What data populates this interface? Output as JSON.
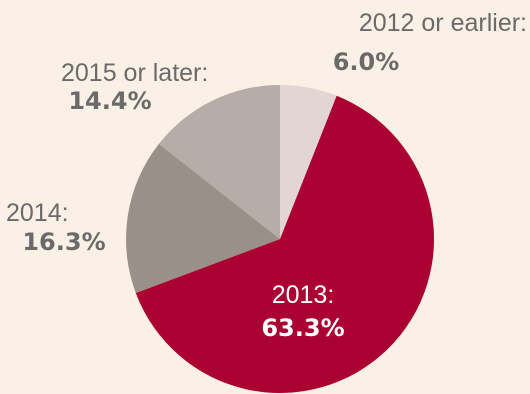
{
  "chart_data": {
    "type": "pie",
    "slices": [
      {
        "label": "2012 or earlier:",
        "value": 6.0,
        "value_label": "6.0%",
        "color": "#e2d6d2"
      },
      {
        "label": "2013:",
        "value": 63.3,
        "value_label": "63.3%",
        "color": "#ab0032"
      },
      {
        "label": "2014:",
        "value": 16.3,
        "value_label": "16.3%",
        "color": "#9a908a"
      },
      {
        "label": "2015 or later:",
        "value": 14.4,
        "value_label": "14.4%",
        "color": "#b6aca8"
      }
    ],
    "background": "#fbf0e6"
  }
}
